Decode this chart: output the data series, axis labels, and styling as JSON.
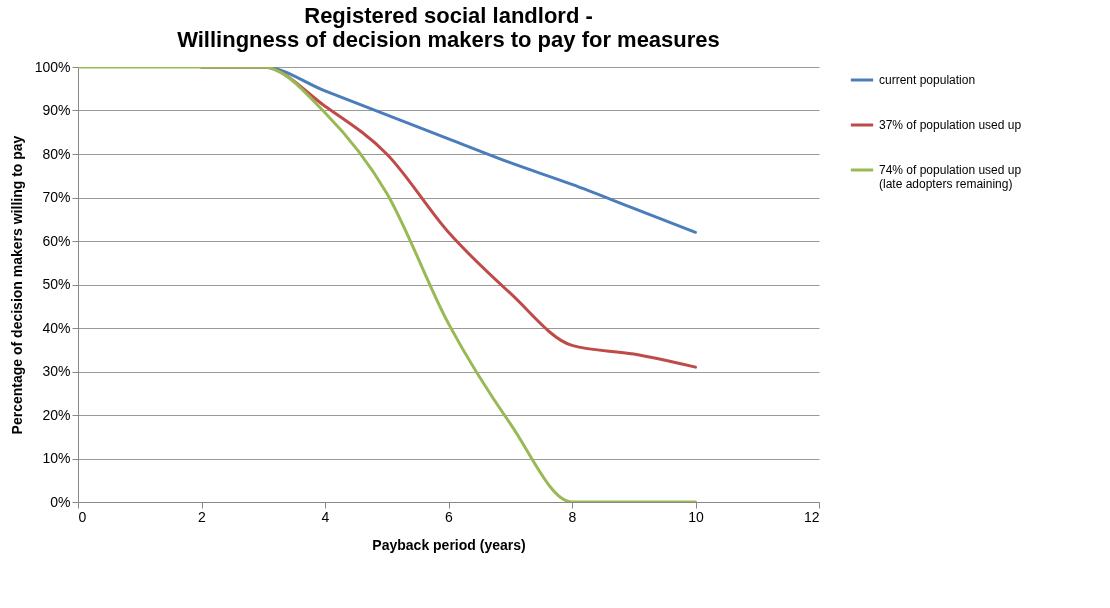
{
  "chart_data": {
    "type": "line",
    "title": "Registered social landlord -\nWillingness of decision makers to pay for measures",
    "xlabel": "Payback period (years)",
    "ylabel": "Percentage of decision makers willing to pay",
    "x": [
      0,
      1,
      2,
      3,
      4,
      5,
      6,
      7,
      8,
      9,
      10
    ],
    "series": [
      {
        "name": "current population",
        "color": "#4a7ebb",
        "values": [
          null,
          null,
          100,
          100,
          94.5,
          89,
          83.5,
          78,
          73,
          67.5,
          62
        ]
      },
      {
        "name": "37% of population used up",
        "color": "#be4b48",
        "values": [
          null,
          null,
          100,
          100,
          91,
          80,
          62,
          48,
          36,
          34,
          31
        ]
      },
      {
        "name": "74% of population used up\n(late adopters remaining)",
        "color": "#98b954",
        "values": [
          100,
          100,
          100,
          100,
          89.5,
          71,
          41,
          18,
          0,
          0,
          0
        ]
      }
    ],
    "xlim": [
      0,
      12
    ],
    "xticks": [
      0,
      2,
      4,
      6,
      8,
      10,
      12
    ],
    "ylim": [
      0,
      100
    ],
    "yticks": [
      {
        "value": 0,
        "label": "0%"
      },
      {
        "value": 10,
        "label": "10%"
      },
      {
        "value": 20,
        "label": "20%"
      },
      {
        "value": 30,
        "label": "30%"
      },
      {
        "value": 40,
        "label": "40%"
      },
      {
        "value": 50,
        "label": "50%"
      },
      {
        "value": 60,
        "label": "60%"
      },
      {
        "value": 70,
        "label": "70%"
      },
      {
        "value": 80,
        "label": "80%"
      },
      {
        "value": 90,
        "label": "90%"
      },
      {
        "value": 100,
        "label": "100%"
      }
    ],
    "grid": "y",
    "legend": "right",
    "marker": "none",
    "line_style": "solid"
  }
}
